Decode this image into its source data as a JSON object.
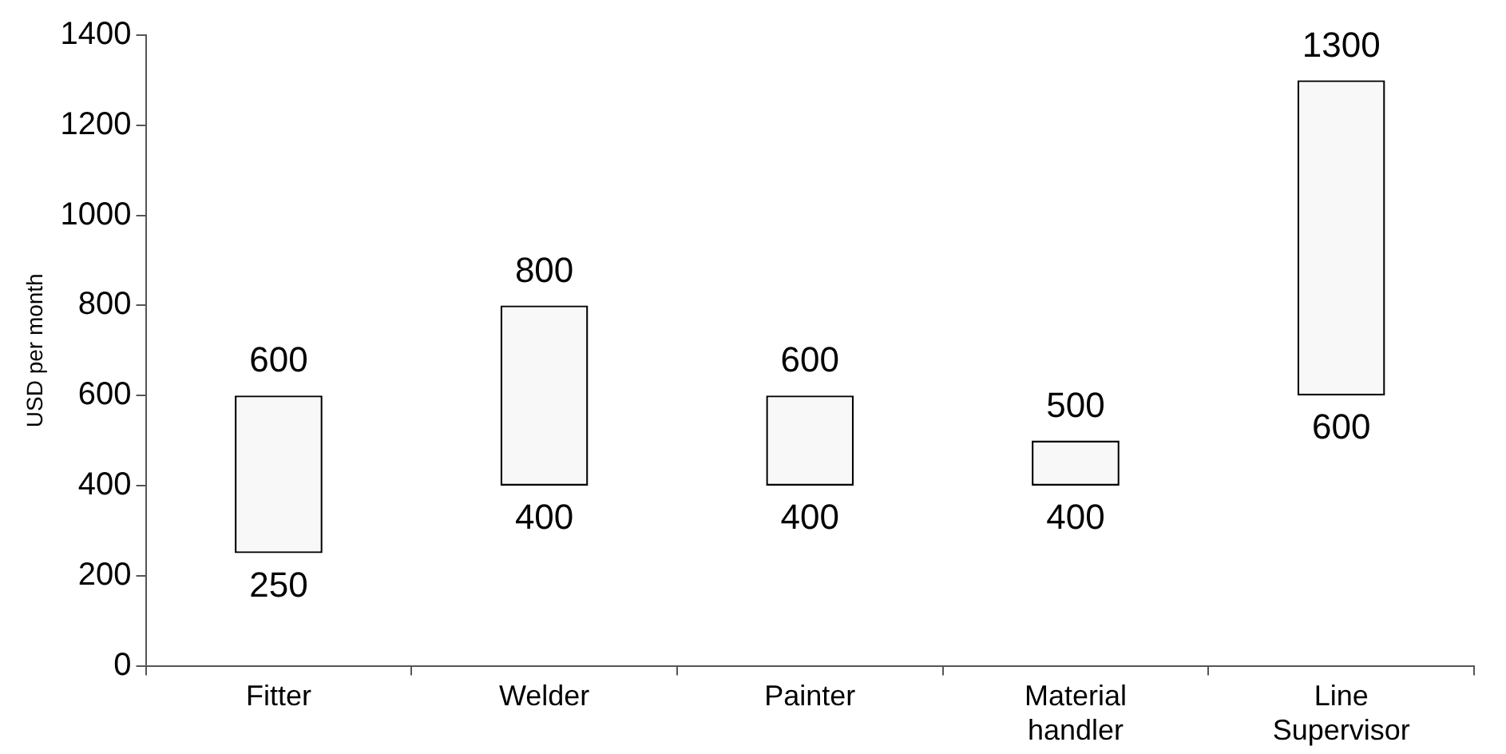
{
  "chart_data": {
    "type": "bar",
    "ylabel": "USD per month",
    "categories": [
      "Fitter",
      "Welder",
      "Painter",
      "Material handler",
      "Line Supervisor"
    ],
    "base": [
      250,
      400,
      400,
      400,
      600
    ],
    "values": [
      350,
      400,
      200,
      100,
      700
    ],
    "color": "#f8f8f8",
    "ylim": [
      0,
      1400
    ],
    "yticks": [
      0,
      200,
      400,
      600,
      800,
      1000,
      1200,
      1400
    ],
    "grid": false,
    "legend": false,
    "annotations": [
      {
        "text": "600",
        "x": "Fitter",
        "y": 600
      },
      {
        "text": "250",
        "x": "Fitter",
        "y": 250
      },
      {
        "text": "800",
        "x": "Welder",
        "y": 800
      },
      {
        "text": "400",
        "x": "Welder",
        "y": 400
      },
      {
        "text": "600",
        "x": "Painter",
        "y": 600
      },
      {
        "text": "400",
        "x": "Painter",
        "y": 400
      },
      {
        "text": "500",
        "x": "Material handler",
        "y": 500
      },
      {
        "text": "400",
        "x": "Material handler",
        "y": 400
      },
      {
        "text": "1300",
        "x": "Line Supervisor",
        "y": 1300
      },
      {
        "text": "600",
        "x": "Line Supervisor",
        "y": 600
      }
    ]
  }
}
